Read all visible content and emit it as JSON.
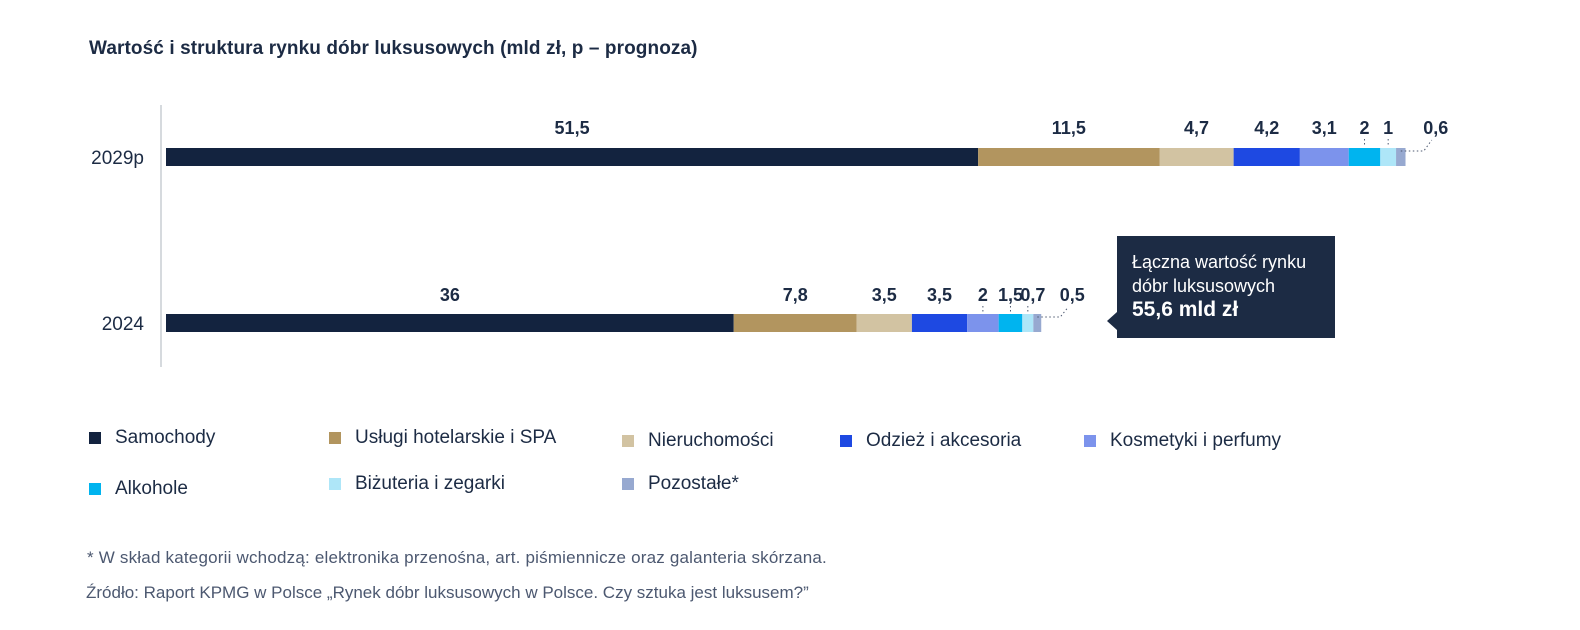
{
  "title": "Wartość i struktura rynku dóbr luksusowych (mld zł, p – prognoza)",
  "chart_data": {
    "type": "bar",
    "orientation": "horizontal",
    "stacked": true,
    "categories": [
      "2029p",
      "2024"
    ],
    "series": [
      {
        "name": "Samochody",
        "color": "#13233f",
        "values": [
          51.5,
          36
        ],
        "labels": [
          "51,5",
          "36"
        ]
      },
      {
        "name": "Usługi hotelarskie i SPA",
        "color": "#b2955f",
        "values": [
          11.5,
          7.8
        ],
        "labels": [
          "11,5",
          "7,8"
        ]
      },
      {
        "name": "Nieruchomości",
        "color": "#d2c3a2",
        "values": [
          4.7,
          3.5
        ],
        "labels": [
          "4,7",
          "3,5"
        ]
      },
      {
        "name": "Odzież i akcesoria",
        "color": "#1e49e2",
        "values": [
          4.2,
          3.5
        ],
        "labels": [
          "4,2",
          "3,5"
        ]
      },
      {
        "name": "Kosmetyki i perfumy",
        "color": "#7c93ec",
        "values": [
          3.1,
          2
        ],
        "labels": [
          "3,1",
          "2"
        ]
      },
      {
        "name": "Alkohole",
        "color": "#00b4ef",
        "values": [
          2,
          1.5
        ],
        "labels": [
          "2",
          "1,5"
        ]
      },
      {
        "name": "Biżuteria i zegarki",
        "color": "#aee6f8",
        "values": [
          1,
          0.7
        ],
        "labels": [
          "1",
          "0,7"
        ]
      },
      {
        "name": "Pozostałe*",
        "color": "#97a9d0",
        "values": [
          0.6,
          0.5
        ],
        "labels": [
          "0,6",
          "0,5"
        ]
      }
    ]
  },
  "tooltip": {
    "text": "Łączna wartość rynku dóbr luksusowych",
    "value": "55,6 mld zł"
  },
  "note": "* W skład kategorii wchodzą: elektronika przenośna, art. piśmiennicze oraz galanteria skórzana.",
  "source": "Źródło: Raport KPMG w Polsce „Rynek dóbr luksusowych w Polsce. Czy sztuka jest luksusem?”"
}
